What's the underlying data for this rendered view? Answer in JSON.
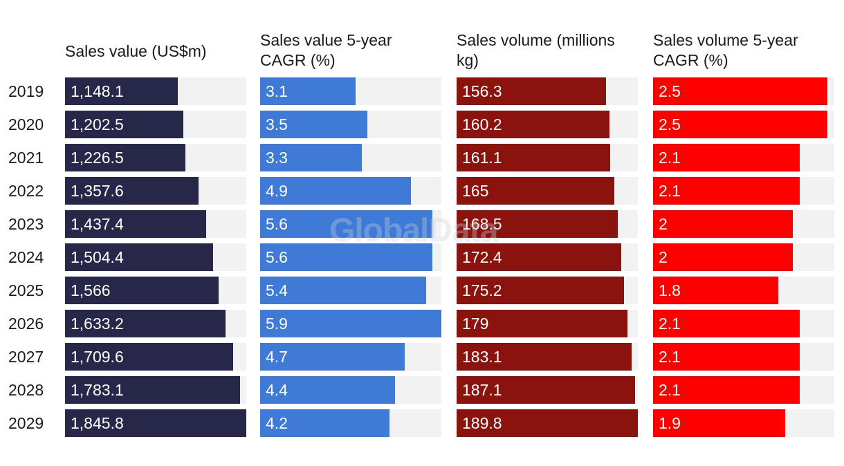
{
  "watermark": "GlobalData",
  "chart_data": {
    "type": "bar",
    "orientation": "horizontal",
    "categories": [
      "2019",
      "2020",
      "2021",
      "2022",
      "2023",
      "2024",
      "2025",
      "2026",
      "2027",
      "2028",
      "2029"
    ],
    "series": [
      {
        "name": "Sales value (US$m)",
        "color": "#27274a",
        "values": [
          1148.1,
          1202.5,
          1226.5,
          1357.6,
          1437.4,
          1504.4,
          1566,
          1633.2,
          1709.6,
          1783.1,
          1845.8
        ],
        "labels": [
          "1,148.1",
          "1,202.5",
          "1,226.5",
          "1,357.6",
          "1,437.4",
          "1,504.4",
          "1,566",
          "1,633.2",
          "1,709.6",
          "1,783.1",
          "1,845.8"
        ],
        "xlim": [
          0,
          1845.8
        ]
      },
      {
        "name": "Sales value 5-year CAGR (%)",
        "color": "#3e7ad6",
        "values": [
          3.1,
          3.5,
          3.3,
          4.9,
          5.6,
          5.6,
          5.4,
          5.9,
          4.7,
          4.4,
          4.2
        ],
        "labels": [
          "3.1",
          "3.5",
          "3.3",
          "4.9",
          "5.6",
          "5.6",
          "5.4",
          "5.9",
          "4.7",
          "4.4",
          "4.2"
        ],
        "xlim": [
          0,
          5.9
        ]
      },
      {
        "name": "Sales volume (millions kg)",
        "color": "#8b130e",
        "values": [
          156.3,
          160.2,
          161.1,
          165,
          168.5,
          172.4,
          175.2,
          179,
          183.1,
          187.1,
          189.8
        ],
        "labels": [
          "156.3",
          "160.2",
          "161.1",
          "165",
          "168.5",
          "172.4",
          "175.2",
          "179",
          "183.1",
          "187.1",
          "189.8"
        ],
        "xlim": [
          0,
          189.8
        ]
      },
      {
        "name": "Sales volume 5-year CAGR (%)",
        "color": "#ff0000",
        "values": [
          2.5,
          2.5,
          2.1,
          2.1,
          2,
          2,
          1.8,
          2.1,
          2.1,
          2.1,
          1.9
        ],
        "labels": [
          "2.5",
          "2.5",
          "2.1",
          "2.1",
          "2",
          "2",
          "1.8",
          "2.1",
          "2.1",
          "2.1",
          "1.9"
        ],
        "xlim": [
          0,
          2.6
        ]
      }
    ]
  }
}
